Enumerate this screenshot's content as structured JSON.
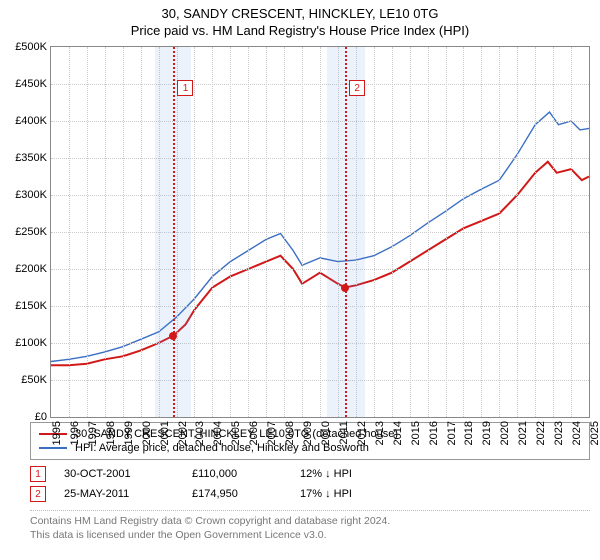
{
  "title1": "30, SANDY CRESCENT, HINCKLEY, LE10 0TG",
  "title2": "Price paid vs. HM Land Registry's House Price Index (HPI)",
  "chart": {
    "type": "line",
    "background_color": "#ffffff",
    "grid_color": "#cccccc",
    "border_color": "#888888",
    "ylim": [
      0,
      500000
    ],
    "ytick_step": 50000,
    "yticks": [
      "£0",
      "£50K",
      "£100K",
      "£150K",
      "£200K",
      "£250K",
      "£300K",
      "£350K",
      "£400K",
      "£450K",
      "£500K"
    ],
    "xlim_year": [
      1995,
      2025
    ],
    "xticks": [
      "1995",
      "1996",
      "1997",
      "1998",
      "1999",
      "2000",
      "2001",
      "2002",
      "2003",
      "2004",
      "2005",
      "2006",
      "2007",
      "2008",
      "2009",
      "2010",
      "2011",
      "2012",
      "2013",
      "2014",
      "2015",
      "2016",
      "2017",
      "2018",
      "2019",
      "2020",
      "2021",
      "2022",
      "2023",
      "2024",
      "2025"
    ],
    "shaded_bands": [
      {
        "from_year": 2000.8,
        "to_year": 2002.8,
        "color": "rgba(100,150,220,0.12)"
      },
      {
        "from_year": 2010.4,
        "to_year": 2012.5,
        "color": "rgba(100,150,220,0.12)"
      }
    ],
    "events": [
      {
        "n": "1",
        "year": 2001.83,
        "color": "#d11919",
        "box_top_value": 455000
      },
      {
        "n": "2",
        "year": 2011.4,
        "color": "#d11919",
        "box_top_value": 455000
      }
    ],
    "series": [
      {
        "name": "price_paid",
        "label": "30, SANDY CRESCENT, HINCKLEY, LE10 0TG (detached house)",
        "color": "#d11919",
        "line_width": 2,
        "points": [
          [
            1995.0,
            70000
          ],
          [
            1996.0,
            70000
          ],
          [
            1997.0,
            72000
          ],
          [
            1998.0,
            78000
          ],
          [
            1999.0,
            82000
          ],
          [
            2000.0,
            90000
          ],
          [
            2001.0,
            100000
          ],
          [
            2001.83,
            110000
          ],
          [
            2002.5,
            125000
          ],
          [
            2003.0,
            145000
          ],
          [
            2003.5,
            160000
          ],
          [
            2004.0,
            175000
          ],
          [
            2005.0,
            190000
          ],
          [
            2006.0,
            200000
          ],
          [
            2007.0,
            210000
          ],
          [
            2007.8,
            218000
          ],
          [
            2008.5,
            200000
          ],
          [
            2009.0,
            180000
          ],
          [
            2010.0,
            195000
          ],
          [
            2011.0,
            180000
          ],
          [
            2011.4,
            175000
          ],
          [
            2012.0,
            178000
          ],
          [
            2013.0,
            185000
          ],
          [
            2014.0,
            195000
          ],
          [
            2015.0,
            210000
          ],
          [
            2016.0,
            225000
          ],
          [
            2017.0,
            240000
          ],
          [
            2018.0,
            255000
          ],
          [
            2019.0,
            265000
          ],
          [
            2020.0,
            275000
          ],
          [
            2021.0,
            300000
          ],
          [
            2022.0,
            330000
          ],
          [
            2022.7,
            345000
          ],
          [
            2023.2,
            330000
          ],
          [
            2024.0,
            335000
          ],
          [
            2024.6,
            320000
          ],
          [
            2025.0,
            325000
          ]
        ],
        "markers": [
          {
            "year": 2001.83,
            "value": 110000
          },
          {
            "year": 2011.4,
            "value": 175000
          }
        ]
      },
      {
        "name": "hpi",
        "label": "HPI: Average price, detached house, Hinckley and Bosworth",
        "color": "#3b6fc4",
        "line_width": 1.4,
        "points": [
          [
            1995.0,
            75000
          ],
          [
            1996.0,
            78000
          ],
          [
            1997.0,
            82000
          ],
          [
            1998.0,
            88000
          ],
          [
            1999.0,
            95000
          ],
          [
            2000.0,
            105000
          ],
          [
            2001.0,
            115000
          ],
          [
            2002.0,
            135000
          ],
          [
            2003.0,
            160000
          ],
          [
            2004.0,
            190000
          ],
          [
            2005.0,
            210000
          ],
          [
            2006.0,
            225000
          ],
          [
            2007.0,
            240000
          ],
          [
            2007.8,
            248000
          ],
          [
            2008.5,
            225000
          ],
          [
            2009.0,
            205000
          ],
          [
            2010.0,
            215000
          ],
          [
            2011.0,
            210000
          ],
          [
            2012.0,
            212000
          ],
          [
            2013.0,
            218000
          ],
          [
            2014.0,
            230000
          ],
          [
            2015.0,
            245000
          ],
          [
            2016.0,
            262000
          ],
          [
            2017.0,
            278000
          ],
          [
            2018.0,
            295000
          ],
          [
            2019.0,
            308000
          ],
          [
            2020.0,
            320000
          ],
          [
            2021.0,
            355000
          ],
          [
            2022.0,
            395000
          ],
          [
            2022.8,
            412000
          ],
          [
            2023.3,
            395000
          ],
          [
            2024.0,
            400000
          ],
          [
            2024.5,
            388000
          ],
          [
            2025.0,
            390000
          ]
        ],
        "markers": []
      }
    ]
  },
  "legend": {
    "rows": [
      {
        "color": "#d11919",
        "label": "30, SANDY CRESCENT, HINCKLEY, LE10 0TG (detached house)"
      },
      {
        "color": "#3b6fc4",
        "label": "HPI: Average price, detached house, Hinckley and Bosworth"
      }
    ]
  },
  "event_table": {
    "rows": [
      {
        "n": "1",
        "color": "#d11919",
        "date": "30-OCT-2001",
        "price": "£110,000",
        "diff": "12% ↓ HPI"
      },
      {
        "n": "2",
        "color": "#d11919",
        "date": "25-MAY-2011",
        "price": "£174,950",
        "diff": "17% ↓ HPI"
      }
    ]
  },
  "footer": {
    "line1": "Contains HM Land Registry data © Crown copyright and database right 2024.",
    "line2": "This data is licensed under the Open Government Licence v3.0."
  }
}
